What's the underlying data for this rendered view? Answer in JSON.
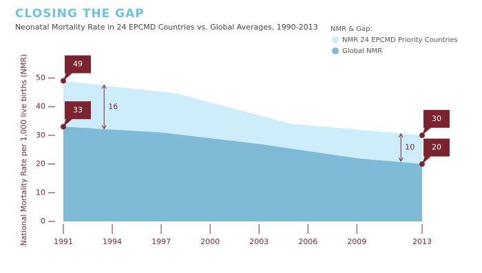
{
  "chart_data": {
    "type": "area",
    "title": "CLOSING THE GAP",
    "subtitle": "Neonatal Mortality Rate in 24 EPCMD Countries vs. Global Averages, 1990-2013",
    "y_label": "National Mortality Rate per 1,000 live births (NMR)",
    "legend_title": "NMR & Gap:",
    "series": [
      {
        "name": "NMR 24 EPCMD Priority Countries",
        "color": "#cdedfb",
        "x": [
          1991,
          1994,
          1997,
          1998,
          2000,
          2003,
          2005,
          2008,
          2013
        ],
        "values": [
          49,
          47,
          45.2,
          44.5,
          41.5,
          37,
          34,
          32.5,
          30
        ],
        "value_labels": [
          "49",
          null,
          null,
          null,
          null,
          null,
          null,
          null,
          "30"
        ]
      },
      {
        "name": "Global NMR",
        "color": "#7fbad7",
        "x": [
          1991,
          1994,
          1997,
          2000,
          2003,
          2006,
          2009,
          2013
        ],
        "values": [
          33,
          32,
          31,
          29,
          27,
          24.5,
          22,
          20
        ],
        "value_labels": [
          "33",
          null,
          null,
          null,
          null,
          null,
          null,
          "20"
        ]
      }
    ],
    "gaps": [
      {
        "x": 1993.5,
        "value": 16,
        "y_from": 32.3,
        "y_to": 47.5
      },
      {
        "x": 2011.7,
        "value": 10,
        "y_from": 21,
        "y_to": 30.5
      }
    ],
    "xlim": [
      1991,
      2013
    ],
    "xticks": [
      1991,
      1994,
      1997,
      2000,
      2003,
      2006,
      2009,
      2013
    ],
    "ylim": [
      0,
      52
    ],
    "yticks": [
      0,
      10,
      20,
      30,
      40,
      50
    ],
    "grid": false,
    "callout_color": "#7b2430",
    "legend_position": "top-right"
  }
}
